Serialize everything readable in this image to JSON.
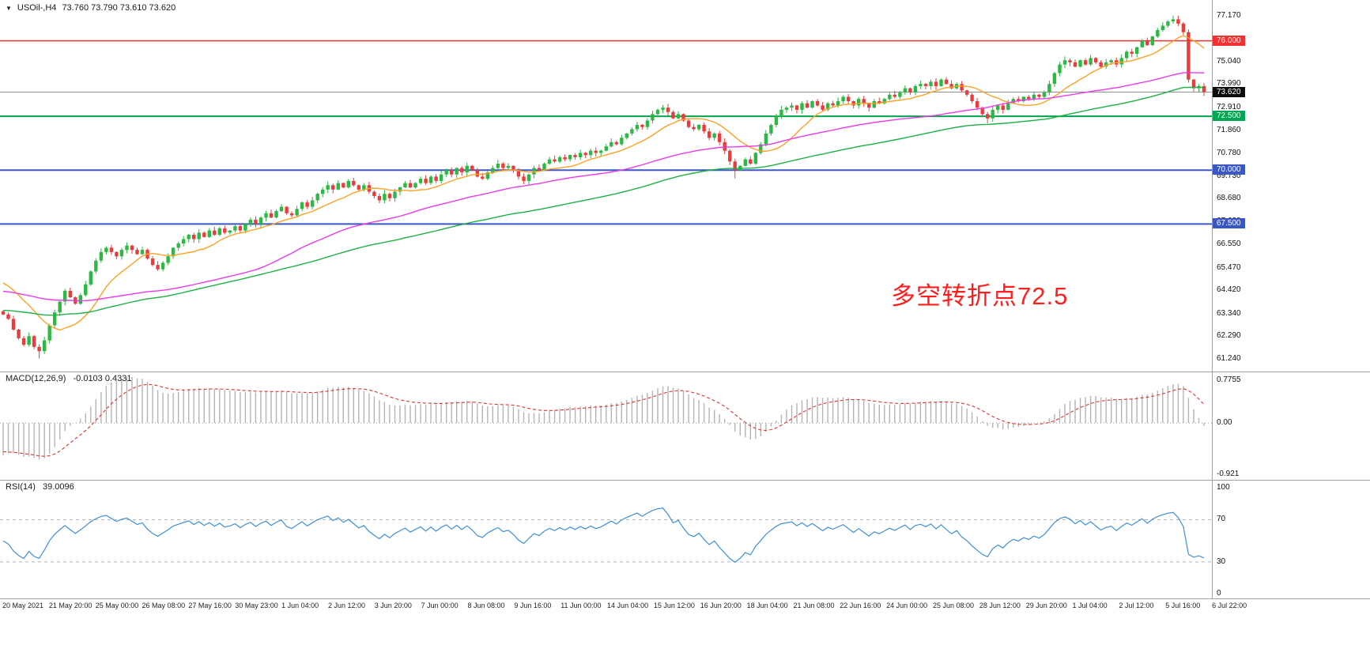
{
  "header": {
    "collapse_icon": "▼",
    "symbol_timeframe": "USOil-,H4",
    "ohlc_values": "73.760 73.790 73.610 73.620"
  },
  "annotation": {
    "text": "多空转折点72.5",
    "color": "#ff1e1e"
  },
  "chart_data": {
    "type": "candlestick",
    "symbol": "USOil",
    "timeframe": "H4",
    "title": "USOil-,H4 73.760 73.790 73.610 73.620",
    "price_range": [
      60.95,
      77.6
    ],
    "price_axis_ticks": [
      "77.170",
      "75.040",
      "73.990",
      "72.910",
      "71.860",
      "70.780",
      "69.730",
      "68.680",
      "67.630",
      "66.550",
      "65.470",
      "64.420",
      "63.340",
      "62.290",
      "61.240"
    ],
    "x_tick_labels": [
      "20 May 2021",
      "21 May 20:00",
      "25 May 00:00",
      "26 May 08:00",
      "27 May 16:00",
      "30 May 23:00",
      "1 Jun 04:00",
      "2 Jun 12:00",
      "3 Jun 20:00",
      "7 Jun 00:00",
      "8 Jun 08:00",
      "9 Jun 16:00",
      "11 Jun 00:00",
      "14 Jun 04:00",
      "15 Jun 12:00",
      "16 Jun 20:00",
      "18 Jun 04:00",
      "21 Jun 08:00",
      "22 Jun 16:00",
      "24 Jun 00:00",
      "25 Jun 08:00",
      "28 Jun 12:00",
      "29 Jun 20:00",
      "1 Jul 04:00",
      "2 Jul 12:00",
      "5 Jul 16:00",
      "6 Jul 22:00"
    ],
    "closes": [
      63.3,
      63.1,
      62.6,
      62.2,
      61.9,
      62.3,
      61.8,
      61.6,
      62.1,
      62.8,
      63.4,
      63.9,
      64.4,
      64.1,
      63.8,
      64.2,
      64.7,
      65.3,
      65.8,
      66.2,
      66.4,
      66.2,
      66.0,
      66.3,
      66.5,
      66.3,
      66.1,
      66.3,
      65.9,
      65.6,
      65.4,
      65.7,
      66.0,
      66.4,
      66.6,
      66.8,
      67.0,
      66.8,
      67.1,
      66.9,
      67.2,
      67.0,
      67.3,
      67.1,
      67.2,
      67.4,
      67.2,
      67.5,
      67.7,
      67.5,
      67.8,
      68.0,
      67.8,
      68.1,
      68.3,
      68.0,
      67.9,
      68.2,
      68.5,
      68.3,
      68.6,
      68.9,
      69.1,
      69.3,
      69.1,
      69.4,
      69.2,
      69.5,
      69.3,
      69.1,
      69.3,
      69.0,
      68.8,
      68.6,
      68.9,
      68.7,
      69.0,
      69.2,
      69.4,
      69.2,
      69.4,
      69.6,
      69.4,
      69.7,
      69.5,
      69.8,
      70.0,
      69.8,
      70.1,
      69.9,
      70.2,
      70.0,
      69.7,
      69.6,
      69.9,
      70.1,
      70.3,
      70.1,
      70.2,
      70.0,
      69.7,
      69.5,
      69.8,
      70.1,
      70.0,
      70.3,
      70.5,
      70.4,
      70.6,
      70.5,
      70.7,
      70.6,
      70.8,
      70.7,
      70.9,
      70.8,
      70.9,
      71.1,
      71.3,
      71.2,
      71.5,
      71.7,
      71.9,
      72.1,
      72.0,
      72.3,
      72.6,
      72.8,
      72.9,
      72.7,
      72.4,
      72.6,
      72.3,
      72.0,
      71.9,
      72.1,
      71.8,
      71.5,
      71.7,
      71.3,
      70.9,
      70.4,
      70.0,
      70.2,
      70.5,
      70.3,
      70.8,
      71.2,
      71.7,
      72.1,
      72.5,
      72.8,
      72.9,
      73.0,
      72.8,
      73.1,
      72.9,
      73.2,
      73.0,
      72.8,
      73.1,
      73.0,
      73.2,
      73.4,
      73.2,
      73.0,
      73.3,
      73.1,
      72.9,
      73.2,
      73.1,
      73.3,
      73.5,
      73.4,
      73.6,
      73.8,
      73.6,
      73.9,
      74.0,
      73.9,
      74.1,
      73.9,
      74.2,
      74.0,
      73.8,
      74.0,
      73.7,
      73.5,
      73.2,
      72.9,
      72.6,
      72.4,
      72.8,
      73.0,
      72.8,
      73.1,
      73.3,
      73.2,
      73.4,
      73.3,
      73.5,
      73.4,
      73.6,
      74.0,
      74.5,
      74.9,
      75.1,
      75.0,
      74.8,
      75.1,
      74.9,
      75.2,
      75.0,
      74.8,
      75.0,
      75.1,
      74.9,
      75.2,
      75.5,
      75.4,
      75.7,
      76.0,
      75.8,
      76.2,
      76.5,
      76.7,
      76.9,
      77.0,
      76.8,
      76.4,
      74.2,
      73.8,
      73.9,
      73.62
    ],
    "wick_overrides": [
      {
        "index": 7,
        "low": 61.26
      },
      {
        "index": 142,
        "low": 69.62
      },
      {
        "index": 191,
        "low": 72.18
      },
      {
        "index": 227,
        "high": 77.17
      }
    ],
    "last_ohlc": {
      "open": 73.76,
      "high": 73.79,
      "low": 73.61,
      "close": 73.62
    },
    "levels": [
      {
        "price": 76.0,
        "label": "76.000",
        "color": "#f53030",
        "line_width": 1.5,
        "badge_bg": "#f53030"
      },
      {
        "price": 73.62,
        "label": "73.620",
        "color": "#909090",
        "line_width": 1,
        "badge_bg": "#0d0d0d",
        "role": "current-price"
      },
      {
        "price": 72.5,
        "label": "72.500",
        "color": "#00a651",
        "line_width": 2,
        "badge_bg": "#00a651"
      },
      {
        "price": 70.0,
        "label": "70.000",
        "color": "#3a57c4",
        "line_width": 2,
        "badge_bg": "#3a57c4"
      },
      {
        "price": 67.5,
        "label": "67.500",
        "color": "#3a57c4",
        "line_width": 2,
        "badge_bg": "#3a57c4"
      }
    ],
    "moving_averages": [
      {
        "name": "ma-fast",
        "type": "sma",
        "period": 12,
        "seed": 64.9,
        "color": "#ffa126"
      },
      {
        "name": "ma-medium",
        "type": "sma",
        "period": 50,
        "seed": 64.4,
        "color": "#ea3bea"
      },
      {
        "name": "ma-slow",
        "type": "ema",
        "period": 90,
        "seed": 63.5,
        "color": "#1cb043"
      }
    ],
    "candle_up_color": "#2db843",
    "candle_down_color": "#e93c3c",
    "indicators": {
      "macd": {
        "label": "MACD(12,26,9)",
        "values": "-0.0103 0.4331",
        "fast": 12,
        "slow": 26,
        "signal": 9,
        "seed_fast": 63.1,
        "seed_slow": 63.75,
        "seed_signal": -0.5,
        "range": [
          -0.98,
          0.84
        ],
        "axis_ticks": [
          "0.7755",
          "0.00",
          "-0.921"
        ],
        "axis_tick_values": [
          0.7755,
          0,
          -0.921
        ],
        "histogram_color": "#b4b4b4",
        "signal_color": "#e03131"
      },
      "rsi": {
        "label": "RSI(14)",
        "value": "39.0096",
        "period": 14,
        "range": [
          -3,
          104
        ],
        "levels": [
          70,
          30
        ],
        "axis_ticks": [
          "100",
          "70",
          "30",
          "0"
        ],
        "axis_tick_values": [
          100,
          70,
          30,
          0
        ],
        "line_color": "#3f8fd6"
      }
    }
  }
}
